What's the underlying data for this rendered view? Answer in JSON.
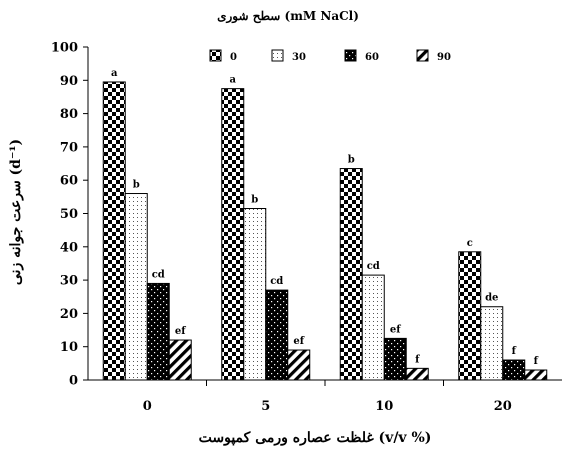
{
  "chart_data": {
    "type": "bar",
    "title": "سطح شوری (mM NaCl)",
    "xlabel": "غلظت عصاره ورمی کمپوست (v/v %)",
    "ylabel": "سرعت جوانه زنی (d⁻¹)",
    "categories": [
      "0",
      "5",
      "10",
      "20"
    ],
    "ylim": [
      0,
      100
    ],
    "yticks": [
      0,
      10,
      20,
      30,
      40,
      50,
      60,
      70,
      80,
      90,
      100
    ],
    "grid": false,
    "legend_position": "top",
    "series": [
      {
        "name": "0",
        "pattern": "checker",
        "values": [
          89.5,
          87.5,
          63.5,
          38.5
        ],
        "labels": [
          "a",
          "a",
          "b",
          "c"
        ]
      },
      {
        "name": "30",
        "pattern": "dots",
        "values": [
          56,
          51.5,
          31.5,
          22
        ],
        "labels": [
          "b",
          "b",
          "cd",
          "de"
        ]
      },
      {
        "name": "60",
        "pattern": "dark",
        "values": [
          29,
          27,
          12.5,
          6
        ],
        "labels": [
          "cd",
          "cd",
          "ef",
          "f"
        ]
      },
      {
        "name": "90",
        "pattern": "hatch",
        "values": [
          12,
          9,
          3.5,
          3
        ],
        "labels": [
          "ef",
          "ef",
          "f",
          "f"
        ]
      }
    ]
  }
}
